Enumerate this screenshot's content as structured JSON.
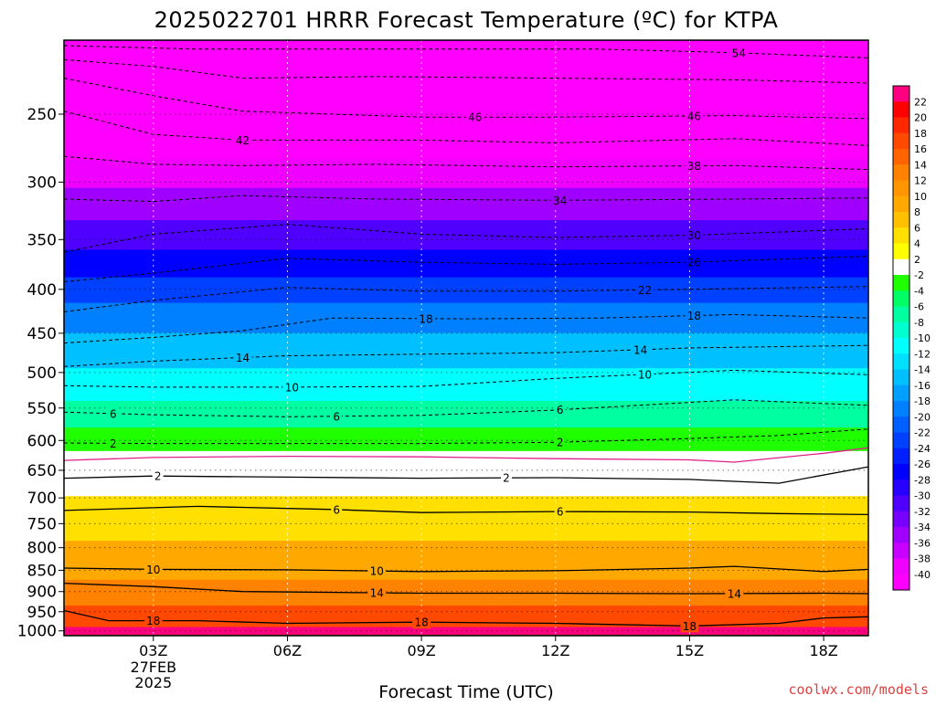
{
  "chart_data": {
    "type": "heatmap",
    "title": "2025022701 HRRR Forecast Temperature (ºC) for KTPA",
    "xlabel": "Forecast Time (UTC)",
    "ylabel": "",
    "credit": "coolwx.com/models",
    "x_ticks": [
      {
        "hour": 3,
        "label": "03Z",
        "sub": [
          "27FEB",
          "2025"
        ]
      },
      {
        "hour": 6,
        "label": "06Z"
      },
      {
        "hour": 9,
        "label": "09Z"
      },
      {
        "hour": 12,
        "label": "12Z"
      },
      {
        "hour": 15,
        "label": "15Z"
      },
      {
        "hour": 18,
        "label": "18Z"
      }
    ],
    "xlim": [
      1,
      19
    ],
    "y_ticks": [
      250,
      300,
      350,
      400,
      450,
      500,
      550,
      600,
      650,
      700,
      750,
      800,
      850,
      900,
      950,
      1000
    ],
    "ylim": [
      1013,
      205
    ],
    "y_scale": "log-pressure",
    "grid": true,
    "colorbar": {
      "levels": [
        22,
        20,
        18,
        16,
        14,
        12,
        10,
        8,
        6,
        4,
        2,
        -2,
        -4,
        -6,
        -8,
        -10,
        -12,
        -14,
        -16,
        -18,
        -20,
        -22,
        -24,
        -26,
        -28,
        -30,
        -32,
        -34,
        -36,
        -38,
        -40
      ],
      "colors": [
        "#ff0080",
        "#ff0000",
        "#ff2800",
        "#ff4800",
        "#ff6400",
        "#ff8200",
        "#ff9600",
        "#ffa800",
        "#ffc000",
        "#ffe000",
        "#ffff00",
        "#ffffff",
        "#20ff00",
        "#00ff64",
        "#00ffa0",
        "#00ffd0",
        "#00ffff",
        "#00e0ff",
        "#00c0ff",
        "#00a0ff",
        "#0080ff",
        "#0060ff",
        "#0040ff",
        "#0020ff",
        "#0000ff",
        "#2800ff",
        "#5000ff",
        "#7800ff",
        "#a000ff",
        "#c800ff",
        "#f000ff",
        "#ff00ff"
      ]
    },
    "ground_color": "#a0522d",
    "temperature_profile": [
      {
        "p": 210,
        "t": -54
      },
      {
        "p": 250,
        "t": -46
      },
      {
        "p": 275,
        "t": -42
      },
      {
        "p": 290,
        "t": -38
      },
      {
        "p": 320,
        "t": -34
      },
      {
        "p": 345,
        "t": -30
      },
      {
        "p": 375,
        "t": -26
      },
      {
        "p": 400,
        "t": -22
      },
      {
        "p": 430,
        "t": -18
      },
      {
        "p": 470,
        "t": -14
      },
      {
        "p": 520,
        "t": -10
      },
      {
        "p": 560,
        "t": -6
      },
      {
        "p": 600,
        "t": -2
      },
      {
        "p": 635,
        "t": 0
      },
      {
        "p": 665,
        "t": 2
      },
      {
        "p": 730,
        "t": 6
      },
      {
        "p": 845,
        "t": 10
      },
      {
        "p": 900,
        "t": 14
      },
      {
        "p": 970,
        "t": 18
      },
      {
        "p": 1010,
        "t": 22
      }
    ],
    "contours": [
      {
        "level": -54,
        "style": "dashed",
        "points": [
          [
            1,
            208
          ],
          [
            4,
            210
          ],
          [
            8,
            210
          ],
          [
            13,
            210
          ],
          [
            16,
            212
          ],
          [
            19,
            215
          ]
        ],
        "labels": [
          16.1
        ]
      },
      {
        "level": -50,
        "style": "dashed",
        "points": [
          [
            1,
            216
          ],
          [
            3,
            220
          ],
          [
            5,
            227
          ],
          [
            8,
            226
          ],
          [
            12,
            227
          ],
          [
            16,
            228
          ],
          [
            19,
            230
          ]
        ],
        "labels": []
      },
      {
        "level": -46,
        "style": "dashed",
        "points": [
          [
            1,
            227
          ],
          [
            3,
            238
          ],
          [
            5,
            248
          ],
          [
            9,
            252
          ],
          [
            12,
            252
          ],
          [
            16,
            251
          ],
          [
            19,
            253
          ]
        ],
        "labels": [
          10.2,
          15.1
        ]
      },
      {
        "level": -42,
        "style": "dashed",
        "points": [
          [
            1,
            248
          ],
          [
            3,
            264
          ],
          [
            5,
            268
          ],
          [
            9,
            268
          ],
          [
            12,
            270
          ],
          [
            16,
            267
          ],
          [
            19,
            272
          ]
        ],
        "labels": [
          5.0
        ]
      },
      {
        "level": -38,
        "style": "dashed",
        "points": [
          [
            1,
            280
          ],
          [
            3,
            286
          ],
          [
            5,
            287
          ],
          [
            8,
            286
          ],
          [
            12,
            288
          ],
          [
            16,
            287
          ],
          [
            19,
            290
          ]
        ],
        "labels": [
          15.1
        ]
      },
      {
        "level": -34,
        "style": "dashed",
        "points": [
          [
            1,
            314
          ],
          [
            3,
            316
          ],
          [
            5,
            311
          ],
          [
            8,
            314
          ],
          [
            12,
            315
          ],
          [
            16,
            314
          ],
          [
            19,
            313
          ]
        ],
        "labels": [
          12.1
        ]
      },
      {
        "level": -30,
        "style": "dashed",
        "points": [
          [
            1,
            362
          ],
          [
            3,
            345
          ],
          [
            6,
            336
          ],
          [
            9,
            345
          ],
          [
            12,
            348
          ],
          [
            15,
            346
          ],
          [
            19,
            340
          ]
        ],
        "labels": [
          15.1
        ]
      },
      {
        "level": -26,
        "style": "dashed",
        "points": [
          [
            1,
            392
          ],
          [
            3,
            383
          ],
          [
            6,
            368
          ],
          [
            9,
            372
          ],
          [
            12,
            374
          ],
          [
            15,
            372
          ],
          [
            19,
            366
          ]
        ],
        "labels": [
          15.1
        ]
      },
      {
        "level": -22,
        "style": "dashed",
        "points": [
          [
            1,
            425
          ],
          [
            3,
            412
          ],
          [
            6,
            398
          ],
          [
            9,
            402
          ],
          [
            12,
            402
          ],
          [
            15,
            400
          ],
          [
            19,
            397
          ]
        ],
        "labels": [
          14.0
        ]
      },
      {
        "level": -18,
        "style": "dashed",
        "points": [
          [
            1,
            462
          ],
          [
            3,
            455
          ],
          [
            5,
            447
          ],
          [
            7,
            432
          ],
          [
            10,
            433
          ],
          [
            13,
            432
          ],
          [
            16,
            428
          ],
          [
            19,
            432
          ]
        ],
        "labels": [
          9.1,
          15.1
        ]
      },
      {
        "level": -14,
        "style": "dashed",
        "points": [
          [
            1,
            492
          ],
          [
            3,
            485
          ],
          [
            6,
            478
          ],
          [
            9,
            476
          ],
          [
            12,
            474
          ],
          [
            15,
            468
          ],
          [
            19,
            465
          ]
        ],
        "labels": [
          5.0,
          13.9
        ]
      },
      {
        "level": -10,
        "style": "dashed",
        "points": [
          [
            1,
            518
          ],
          [
            3,
            520
          ],
          [
            6,
            520
          ],
          [
            9,
            519
          ],
          [
            12,
            508
          ],
          [
            16,
            497
          ],
          [
            19,
            503
          ]
        ],
        "labels": [
          6.1,
          14.0
        ]
      },
      {
        "level": -6,
        "style": "dashed",
        "points": [
          [
            1,
            556
          ],
          [
            3,
            560
          ],
          [
            6,
            563
          ],
          [
            9,
            561
          ],
          [
            12,
            553
          ],
          [
            16,
            538
          ],
          [
            19,
            546
          ]
        ],
        "labels": [
          2.1,
          7.1,
          12.1
        ]
      },
      {
        "level": -2,
        "style": "dashed",
        "points": [
          [
            1,
            604
          ],
          [
            3,
            605
          ],
          [
            6,
            605
          ],
          [
            9,
            605
          ],
          [
            12,
            603
          ],
          [
            15,
            597
          ],
          [
            17,
            592
          ],
          [
            19,
            582
          ]
        ],
        "labels": [
          2.1,
          12.1
        ]
      },
      {
        "level": 0,
        "style": "magenta",
        "points": [
          [
            1,
            633
          ],
          [
            3,
            628
          ],
          [
            6,
            626
          ],
          [
            9,
            627
          ],
          [
            12,
            630
          ],
          [
            15,
            632
          ],
          [
            16,
            636
          ],
          [
            18,
            621
          ],
          [
            19,
            612
          ]
        ],
        "labels": []
      },
      {
        "level": 2,
        "style": "solid",
        "points": [
          [
            1,
            664
          ],
          [
            3,
            660
          ],
          [
            6,
            662
          ],
          [
            9,
            664
          ],
          [
            12,
            663
          ],
          [
            15,
            666
          ],
          [
            17,
            673
          ],
          [
            19,
            644
          ]
        ],
        "labels": [
          3.1,
          10.9
        ]
      },
      {
        "level": 6,
        "style": "solid",
        "points": [
          [
            1,
            724
          ],
          [
            4,
            716
          ],
          [
            7,
            722
          ],
          [
            9,
            728
          ],
          [
            12,
            726
          ],
          [
            15,
            727
          ],
          [
            17,
            730
          ],
          [
            19,
            732
          ]
        ],
        "labels": [
          7.1,
          12.1
        ]
      },
      {
        "level": 10,
        "style": "solid",
        "points": [
          [
            1,
            845
          ],
          [
            3,
            848
          ],
          [
            6,
            849
          ],
          [
            9,
            853
          ],
          [
            12,
            851
          ],
          [
            15,
            845
          ],
          [
            16,
            841
          ],
          [
            18,
            853
          ],
          [
            19,
            848
          ]
        ],
        "labels": [
          3.0,
          8.0
        ]
      },
      {
        "level": 14,
        "style": "solid",
        "points": [
          [
            1,
            880
          ],
          [
            3,
            888
          ],
          [
            5,
            900
          ],
          [
            9,
            904
          ],
          [
            12,
            904
          ],
          [
            15,
            905
          ],
          [
            18,
            904
          ],
          [
            19,
            905
          ]
        ],
        "labels": [
          8.0,
          16.0
        ]
      },
      {
        "level": 18,
        "style": "solid",
        "points": [
          [
            1,
            947
          ],
          [
            2,
            973
          ],
          [
            4,
            973
          ],
          [
            6,
            980
          ],
          [
            9,
            977
          ],
          [
            12,
            980
          ],
          [
            15,
            987
          ],
          [
            17,
            980
          ],
          [
            18,
            966
          ],
          [
            19,
            963
          ]
        ],
        "labels": [
          3.0,
          9.0,
          15.0
        ]
      }
    ]
  }
}
